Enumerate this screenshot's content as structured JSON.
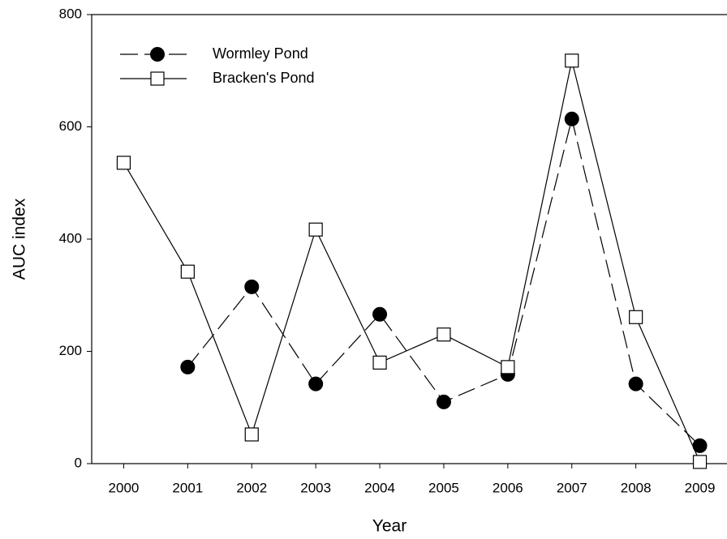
{
  "chart_data": {
    "type": "line",
    "x_label": "Year",
    "y_label": "AUC index",
    "x": [
      2000,
      2001,
      2002,
      2003,
      2004,
      2005,
      2006,
      2007,
      2008,
      2009
    ],
    "series": [
      {
        "name": "Wormley Pond",
        "color": "#000000",
        "marker": "circle",
        "dashed": true,
        "values": [
          null,
          172,
          315,
          142,
          266,
          110,
          159,
          614,
          142,
          32
        ]
      },
      {
        "name": "Bracken's Pond",
        "color": "#000000",
        "marker": "square",
        "dashed": false,
        "values": [
          536,
          342,
          52,
          417,
          180,
          230,
          172,
          718,
          261,
          3
        ]
      }
    ],
    "xlim": [
      1999.5,
      2009.5
    ],
    "xticks": [
      2000,
      2001,
      2002,
      2003,
      2004,
      2005,
      2006,
      2007,
      2008,
      2009
    ],
    "ylim": [
      0,
      800
    ],
    "yticks": [
      0,
      200,
      400,
      600,
      800
    ],
    "legend": "upper left",
    "grid": false
  }
}
